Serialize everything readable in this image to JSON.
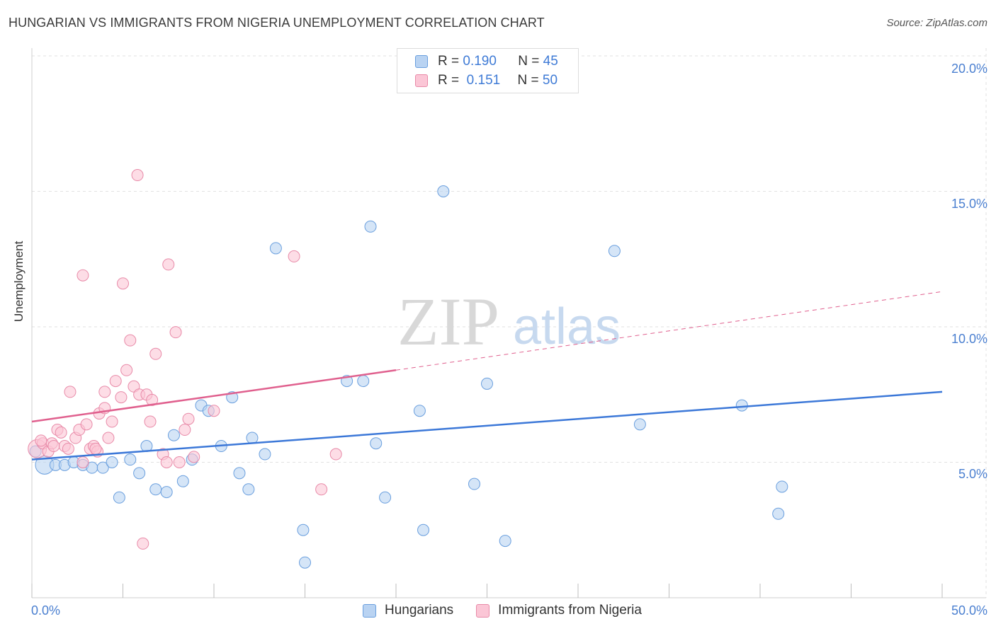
{
  "title": "HUNGARIAN VS IMMIGRANTS FROM NIGERIA UNEMPLOYMENT CORRELATION CHART",
  "source": "Source: ZipAtlas.com",
  "watermark": {
    "zip": "ZIP",
    "atlas": "atlas"
  },
  "legend": {
    "r_label": "R =",
    "n_label": "N =",
    "series": [
      {
        "name": "Hungarians",
        "r": "0.190",
        "n": "45",
        "fill": "#b9d3f2",
        "stroke": "#6a9fde"
      },
      {
        "name": "Immigrants from Nigeria",
        "r": "0.151",
        "n": "50",
        "fill": "#fbc6d6",
        "stroke": "#e88aa8"
      }
    ]
  },
  "chart_data": {
    "type": "scatter",
    "title": "HUNGARIAN VS IMMIGRANTS FROM NIGERIA UNEMPLOYMENT CORRELATION CHART",
    "xlabel": "",
    "ylabel": "Unemployment",
    "xlim": [
      0,
      50
    ],
    "ylim": [
      0,
      20
    ],
    "x_tick_labels": [
      "0.0%",
      "50.0%"
    ],
    "y_ticks": [
      5,
      10,
      15,
      20
    ],
    "y_tick_labels": [
      "5.0%",
      "10.0%",
      "15.0%",
      "20.0%"
    ],
    "grid": true,
    "legend_position": "top-center",
    "series": [
      {
        "name": "Hungarians",
        "color": "#3c78d8",
        "trend": {
          "x0": 0,
          "y0": 5.1,
          "x1": 50,
          "y1": 7.6,
          "dashed_from": null
        },
        "points": [
          {
            "x": 0.7,
            "y": 4.9,
            "big": true
          },
          {
            "x": 1.3,
            "y": 4.9
          },
          {
            "x": 1.8,
            "y": 4.9
          },
          {
            "x": 2.3,
            "y": 5.0
          },
          {
            "x": 2.8,
            "y": 4.9
          },
          {
            "x": 3.3,
            "y": 4.8
          },
          {
            "x": 3.9,
            "y": 4.8
          },
          {
            "x": 4.4,
            "y": 5.0
          },
          {
            "x": 4.8,
            "y": 3.7
          },
          {
            "x": 5.4,
            "y": 5.1
          },
          {
            "x": 5.9,
            "y": 4.6
          },
          {
            "x": 6.3,
            "y": 5.6
          },
          {
            "x": 6.8,
            "y": 4.0
          },
          {
            "x": 7.4,
            "y": 3.9
          },
          {
            "x": 7.8,
            "y": 6.0
          },
          {
            "x": 8.3,
            "y": 4.3
          },
          {
            "x": 8.8,
            "y": 5.1
          },
          {
            "x": 9.3,
            "y": 7.1
          },
          {
            "x": 9.7,
            "y": 6.9
          },
          {
            "x": 10.4,
            "y": 5.6
          },
          {
            "x": 11.0,
            "y": 7.4
          },
          {
            "x": 11.4,
            "y": 4.6
          },
          {
            "x": 11.9,
            "y": 4.0
          },
          {
            "x": 12.1,
            "y": 5.9
          },
          {
            "x": 12.8,
            "y": 5.3
          },
          {
            "x": 13.4,
            "y": 12.9
          },
          {
            "x": 14.9,
            "y": 2.5
          },
          {
            "x": 15.0,
            "y": 1.3
          },
          {
            "x": 17.3,
            "y": 8.0
          },
          {
            "x": 18.2,
            "y": 8.0
          },
          {
            "x": 18.6,
            "y": 13.7
          },
          {
            "x": 18.9,
            "y": 5.7
          },
          {
            "x": 19.4,
            "y": 3.7
          },
          {
            "x": 21.3,
            "y": 6.9
          },
          {
            "x": 21.5,
            "y": 2.5
          },
          {
            "x": 22.6,
            "y": 15.0
          },
          {
            "x": 24.3,
            "y": 4.2
          },
          {
            "x": 25.0,
            "y": 7.9
          },
          {
            "x": 26.0,
            "y": 2.1
          },
          {
            "x": 32.0,
            "y": 12.8
          },
          {
            "x": 33.4,
            "y": 6.4
          },
          {
            "x": 39.0,
            "y": 7.1
          },
          {
            "x": 41.0,
            "y": 3.1
          },
          {
            "x": 41.2,
            "y": 4.1
          },
          {
            "x": 0.2,
            "y": 5.4
          }
        ]
      },
      {
        "name": "Immigrants from Nigeria",
        "color": "#e0608e",
        "trend": {
          "x0": 0,
          "y0": 6.5,
          "x1": 20,
          "y1": 8.4,
          "dashed_to_x": 50,
          "dashed_to_y": 11.3
        },
        "points": [
          {
            "x": 0.3,
            "y": 5.5,
            "big": true
          },
          {
            "x": 0.6,
            "y": 5.7
          },
          {
            "x": 0.9,
            "y": 5.4
          },
          {
            "x": 1.1,
            "y": 5.7
          },
          {
            "x": 1.4,
            "y": 6.2
          },
          {
            "x": 1.6,
            "y": 6.1
          },
          {
            "x": 1.8,
            "y": 5.6
          },
          {
            "x": 2.0,
            "y": 5.5
          },
          {
            "x": 2.1,
            "y": 7.6
          },
          {
            "x": 2.4,
            "y": 5.9
          },
          {
            "x": 2.6,
            "y": 6.2
          },
          {
            "x": 2.8,
            "y": 11.9
          },
          {
            "x": 2.8,
            "y": 5.0
          },
          {
            "x": 3.0,
            "y": 6.4
          },
          {
            "x": 3.2,
            "y": 5.5
          },
          {
            "x": 3.4,
            "y": 5.6
          },
          {
            "x": 3.6,
            "y": 5.4
          },
          {
            "x": 3.7,
            "y": 6.8
          },
          {
            "x": 4.0,
            "y": 7.0
          },
          {
            "x": 4.0,
            "y": 7.6
          },
          {
            "x": 4.2,
            "y": 5.9
          },
          {
            "x": 4.4,
            "y": 6.5
          },
          {
            "x": 4.6,
            "y": 8.0
          },
          {
            "x": 4.9,
            "y": 7.4
          },
          {
            "x": 5.0,
            "y": 11.6
          },
          {
            "x": 5.2,
            "y": 8.4
          },
          {
            "x": 5.4,
            "y": 9.5
          },
          {
            "x": 5.6,
            "y": 7.8
          },
          {
            "x": 5.8,
            "y": 15.6
          },
          {
            "x": 5.9,
            "y": 7.5
          },
          {
            "x": 6.1,
            "y": 2.0
          },
          {
            "x": 6.3,
            "y": 7.5
          },
          {
            "x": 6.5,
            "y": 6.5
          },
          {
            "x": 6.6,
            "y": 7.3
          },
          {
            "x": 6.8,
            "y": 9.0
          },
          {
            "x": 7.2,
            "y": 5.3
          },
          {
            "x": 7.4,
            "y": 5.0
          },
          {
            "x": 7.5,
            "y": 12.3
          },
          {
            "x": 7.9,
            "y": 9.8
          },
          {
            "x": 8.1,
            "y": 5.0
          },
          {
            "x": 8.4,
            "y": 6.2
          },
          {
            "x": 8.6,
            "y": 6.6
          },
          {
            "x": 8.9,
            "y": 5.2
          },
          {
            "x": 10.0,
            "y": 6.9
          },
          {
            "x": 14.4,
            "y": 12.6
          },
          {
            "x": 15.9,
            "y": 4.0
          },
          {
            "x": 16.7,
            "y": 5.3
          },
          {
            "x": 0.5,
            "y": 5.8
          },
          {
            "x": 1.2,
            "y": 5.6
          },
          {
            "x": 3.5,
            "y": 5.5
          }
        ]
      }
    ]
  }
}
